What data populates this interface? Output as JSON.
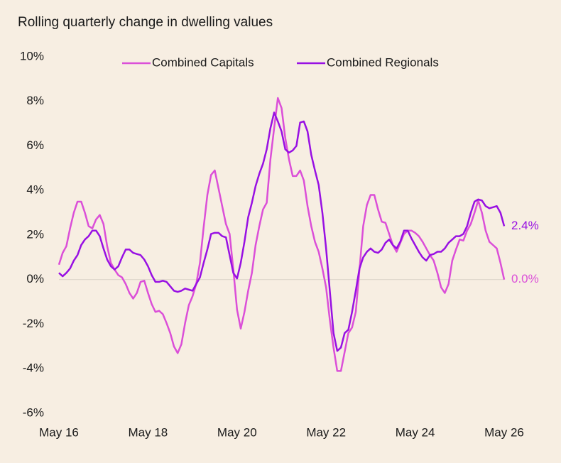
{
  "chart_data": {
    "type": "line",
    "title": "Rolling quarterly change in dwelling values",
    "categories": [
      "May 16",
      null,
      null,
      null,
      null,
      null,
      null,
      null,
      null,
      null,
      null,
      null,
      null,
      null,
      null,
      null,
      null,
      null,
      null,
      null,
      null,
      null,
      null,
      null,
      "May 18",
      null,
      null,
      null,
      null,
      null,
      null,
      null,
      null,
      null,
      null,
      null,
      null,
      null,
      null,
      null,
      null,
      null,
      null,
      null,
      null,
      null,
      null,
      null,
      "May 20",
      null,
      null,
      null,
      null,
      null,
      null,
      null,
      null,
      null,
      null,
      null,
      null,
      null,
      null,
      null,
      null,
      null,
      null,
      null,
      null,
      null,
      null,
      null,
      "May 22",
      null,
      null,
      null,
      null,
      null,
      null,
      null,
      null,
      null,
      null,
      null,
      null,
      null,
      null,
      null,
      null,
      null,
      null,
      null,
      null,
      null,
      null,
      null,
      "May 24",
      null,
      null,
      null,
      null,
      null,
      null,
      null,
      null,
      null,
      null,
      null,
      null,
      null,
      null,
      null,
      null,
      null,
      null,
      null,
      null,
      null,
      null,
      null,
      "May 26"
    ],
    "series": [
      {
        "name": "Combined Capitals",
        "color": "#db4fd8",
        "end_label": "0.0%",
        "values": [
          0.67,
          1.2,
          1.5,
          2.3,
          3.0,
          3.5,
          3.5,
          3.0,
          2.4,
          2.3,
          2.7,
          2.9,
          2.5,
          1.5,
          0.75,
          0.45,
          0.2,
          0.1,
          -0.2,
          -0.6,
          -0.85,
          -0.6,
          -0.1,
          -0.05,
          -0.6,
          -1.1,
          -1.45,
          -1.4,
          -1.55,
          -1.95,
          -2.4,
          -3.0,
          -3.3,
          -2.9,
          -1.95,
          -1.15,
          -0.75,
          -0.2,
          0.75,
          2.35,
          3.8,
          4.7,
          4.9,
          4.1,
          3.3,
          2.5,
          2.05,
          0.45,
          -1.35,
          -2.2,
          -1.45,
          -0.5,
          0.3,
          1.55,
          2.4,
          3.15,
          3.45,
          5.4,
          6.8,
          8.15,
          7.7,
          6.35,
          5.4,
          4.65,
          4.65,
          4.9,
          4.45,
          3.3,
          2.4,
          1.7,
          1.25,
          0.5,
          -0.35,
          -1.8,
          -3.05,
          -4.1,
          -4.1,
          -3.25,
          -2.4,
          -2.15,
          -1.45,
          0.45,
          2.4,
          3.35,
          3.8,
          3.8,
          3.15,
          2.6,
          2.55,
          2.05,
          1.55,
          1.25,
          1.65,
          2.05,
          2.2,
          2.2,
          2.1,
          1.95,
          1.7,
          1.4,
          1.1,
          0.85,
          0.3,
          -0.35,
          -0.6,
          -0.2,
          0.85,
          1.35,
          1.8,
          1.75,
          2.2,
          2.5,
          3.0,
          3.55,
          3.0,
          2.2,
          1.7,
          1.55,
          1.4,
          0.75,
          0.0
        ]
      },
      {
        "name": "Combined Regionals",
        "color": "#9810e3",
        "end_label": "2.4%",
        "values": [
          0.3,
          0.15,
          0.3,
          0.5,
          0.85,
          1.1,
          1.55,
          1.8,
          1.95,
          2.2,
          2.2,
          1.95,
          1.4,
          0.9,
          0.6,
          0.45,
          0.6,
          1.0,
          1.35,
          1.35,
          1.2,
          1.15,
          1.1,
          0.9,
          0.6,
          0.2,
          -0.1,
          -0.1,
          -0.05,
          -0.1,
          -0.3,
          -0.5,
          -0.55,
          -0.5,
          -0.4,
          -0.45,
          -0.5,
          -0.2,
          0.1,
          0.75,
          1.35,
          2.05,
          2.1,
          2.1,
          1.95,
          1.9,
          1.1,
          0.3,
          0.05,
          0.75,
          1.7,
          2.8,
          3.45,
          4.2,
          4.75,
          5.2,
          5.85,
          6.8,
          7.5,
          7.1,
          6.65,
          5.85,
          5.7,
          5.8,
          6.0,
          7.05,
          7.1,
          6.65,
          5.6,
          4.9,
          4.25,
          3.0,
          1.4,
          -0.5,
          -2.4,
          -3.2,
          -3.05,
          -2.4,
          -2.25,
          -1.45,
          -0.5,
          0.5,
          1.0,
          1.25,
          1.4,
          1.25,
          1.2,
          1.35,
          1.65,
          1.8,
          1.55,
          1.4,
          1.7,
          2.2,
          2.2,
          1.85,
          1.55,
          1.25,
          1.0,
          0.85,
          1.1,
          1.15,
          1.25,
          1.25,
          1.4,
          1.65,
          1.8,
          1.95,
          1.95,
          2.05,
          2.4,
          3.0,
          3.5,
          3.6,
          3.55,
          3.3,
          3.2,
          3.25,
          3.3,
          3.0,
          2.4
        ]
      }
    ],
    "ylim": [
      -6,
      10
    ],
    "yticks": [
      {
        "value": -6,
        "label": "-6%"
      },
      {
        "value": -4,
        "label": "-4%"
      },
      {
        "value": -2,
        "label": "-2%"
      },
      {
        "value": 0,
        "label": "0%"
      },
      {
        "value": 2,
        "label": "2%"
      },
      {
        "value": 4,
        "label": "4%"
      },
      {
        "value": 6,
        "label": "6%"
      },
      {
        "value": 8,
        "label": "8%"
      },
      {
        "value": 10,
        "label": "10%"
      }
    ],
    "legend": "top"
  }
}
